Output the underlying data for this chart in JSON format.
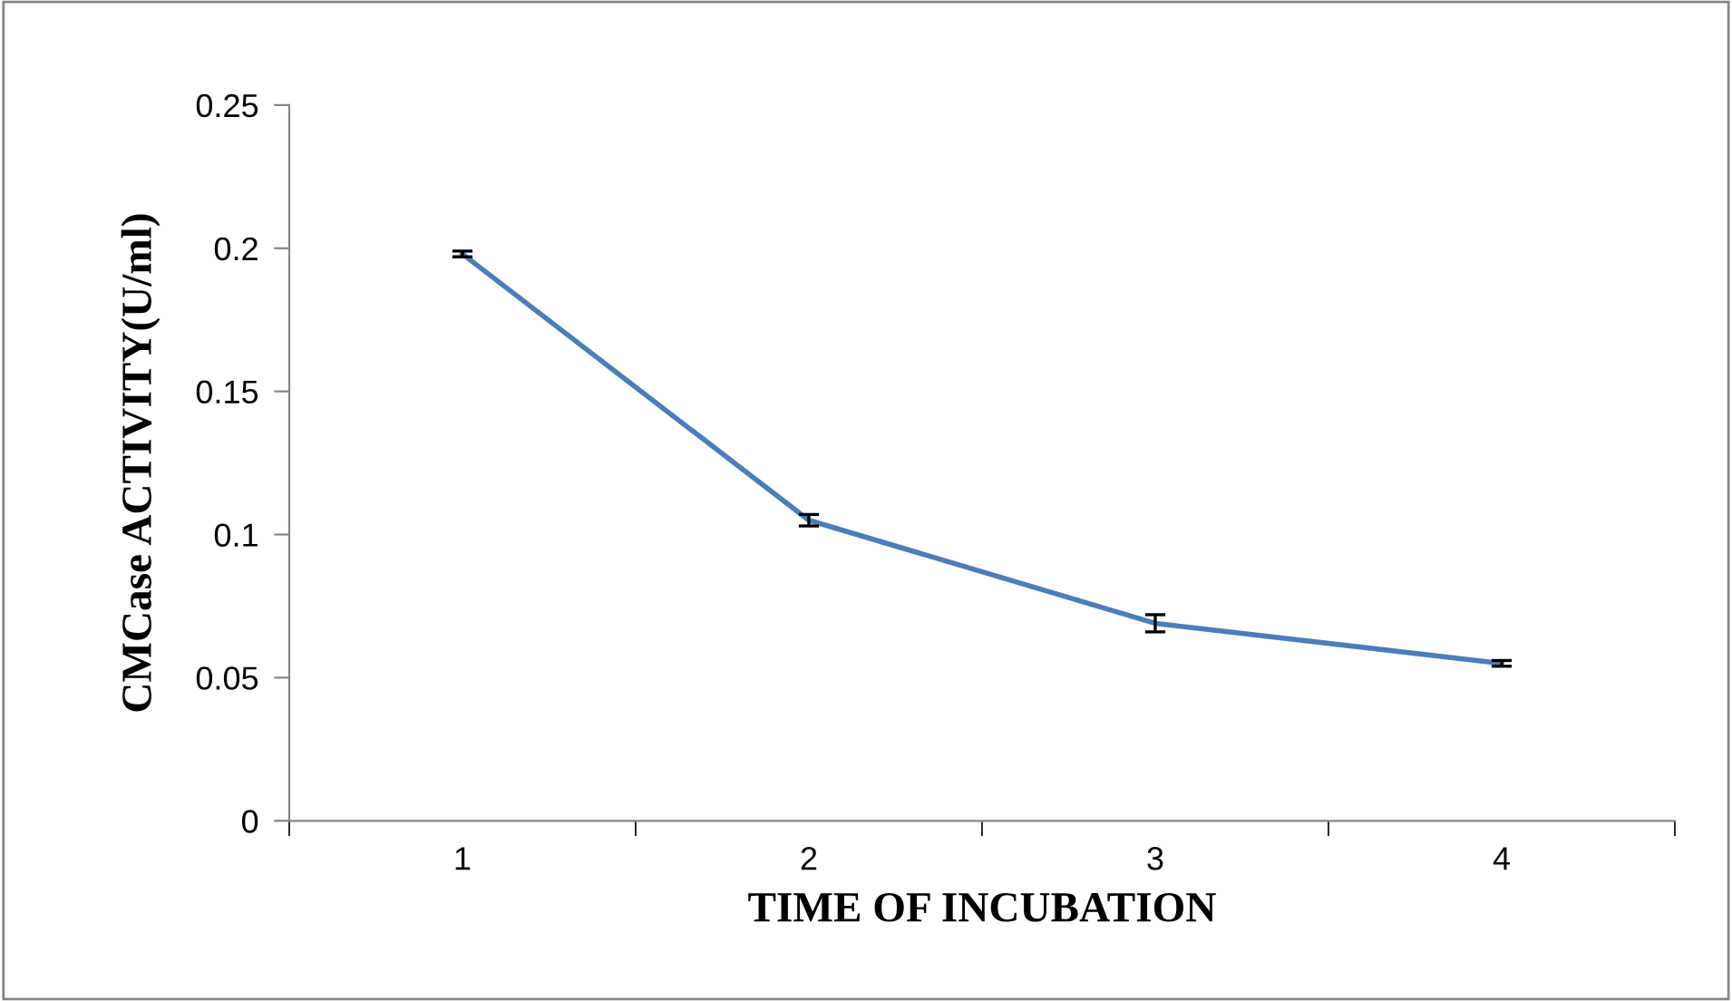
{
  "chart_data": {
    "type": "line",
    "xlabel": "TIME OF INCUBATION",
    "ylabel": "CMCase ACTIVITY(U/ml)",
    "categories": [
      "1",
      "2",
      "3",
      "4"
    ],
    "series": [
      {
        "color": "#4a7ebb",
        "values": [
          0.198,
          0.105,
          0.069,
          0.055
        ],
        "errors": [
          0.001,
          0.002,
          0.003,
          0.001
        ]
      }
    ],
    "ylim": [
      0,
      0.25
    ],
    "yticks": [
      0,
      {
        "value": 0.05,
        "label": "0.05"
      },
      {
        "value": 0.1,
        "label": "0.1"
      },
      {
        "value": 0.15,
        "label": "0.15"
      },
      {
        "value": 0.2,
        "label": "0.2"
      },
      {
        "value": 0.25,
        "label": "0.25"
      }
    ],
    "grid": false,
    "legend": false,
    "marker": "none",
    "line_style": "solid"
  }
}
